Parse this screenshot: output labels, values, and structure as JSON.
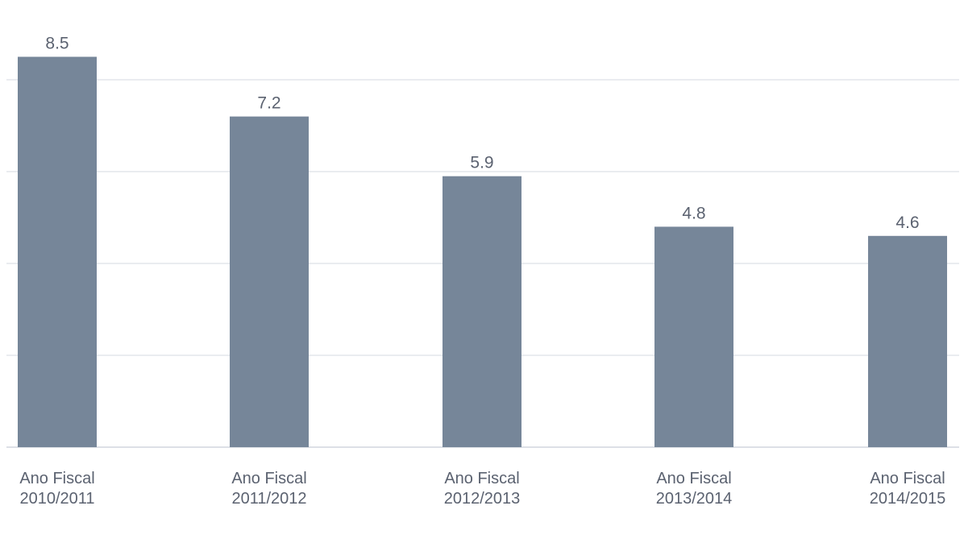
{
  "chart_data": {
    "type": "bar",
    "categories": [
      [
        "Ano Fiscal",
        "2010/2011"
      ],
      [
        "Ano Fiscal",
        "2011/2012"
      ],
      [
        "Ano Fiscal",
        "2012/2013"
      ],
      [
        "Ano Fiscal",
        "2013/2014"
      ],
      [
        "Ano Fiscal",
        "2014/2015"
      ]
    ],
    "values": [
      8.5,
      7.2,
      5.9,
      4.8,
      4.6
    ],
    "value_labels": [
      "8.5",
      "7.2",
      "5.9",
      "4.8",
      "4.6"
    ],
    "title": "",
    "xlabel": "",
    "ylabel": "",
    "ylim": [
      0,
      8
    ],
    "gridlines": [
      2,
      4,
      6,
      8
    ],
    "grid": true,
    "legend": "none",
    "colors": {
      "bar": "#768699",
      "grid": "#e3e6ec",
      "axis": "#dde0e6",
      "label_text": "#5b6270",
      "value_text": "#5b6270"
    }
  }
}
